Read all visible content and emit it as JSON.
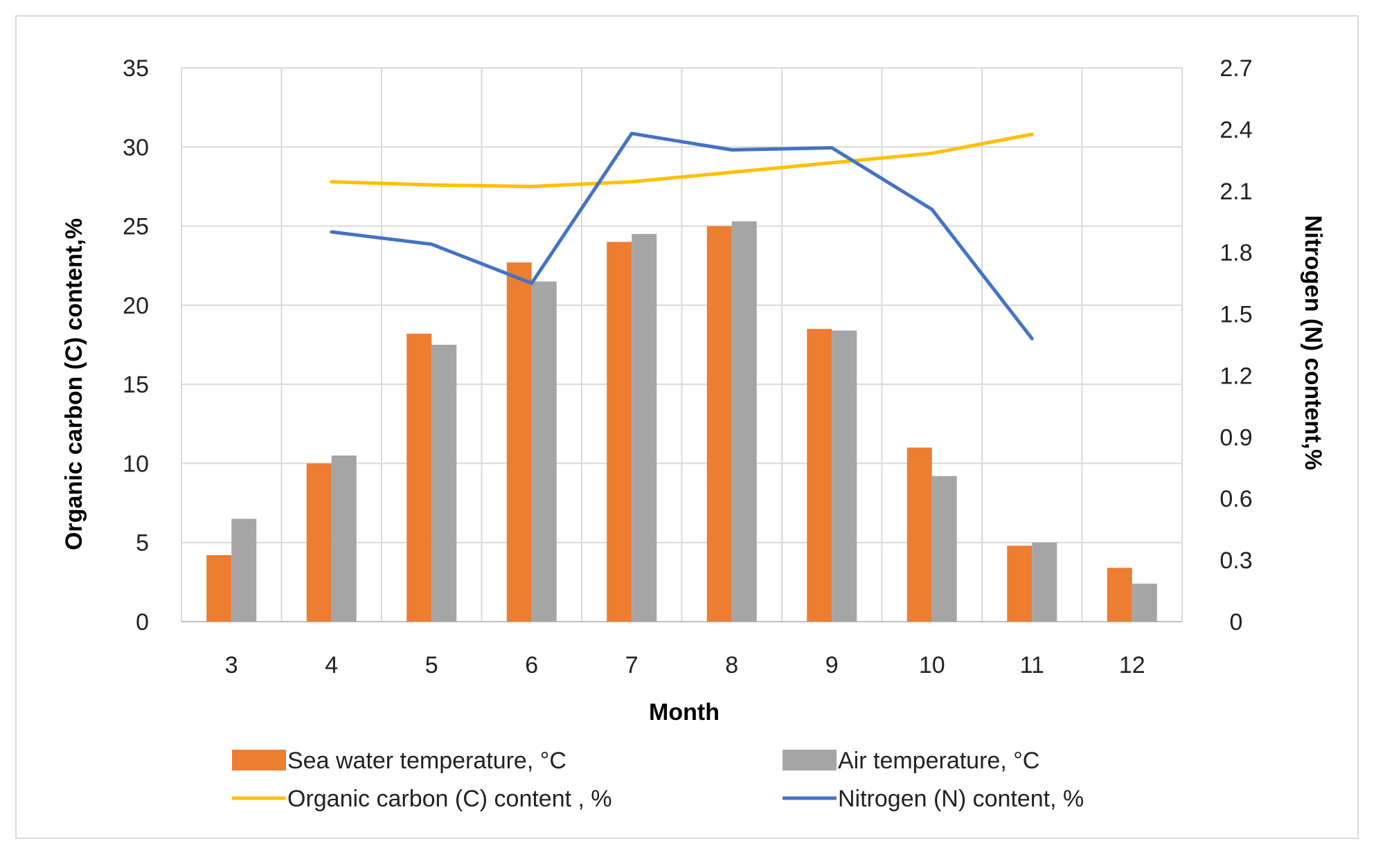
{
  "chart_data": {
    "type": "bar",
    "categories": [
      "3",
      "4",
      "5",
      "6",
      "7",
      "8",
      "9",
      "10",
      "11",
      "12"
    ],
    "xlabel": "Month",
    "ylabel": "Organic carbon (C) content,%",
    "y2label": "Nitrogen (N) content,%",
    "ylim": [
      0,
      35
    ],
    "y2lim": [
      0,
      2.7
    ],
    "yticks": [
      "0",
      "5",
      "10",
      "15",
      "20",
      "25",
      "30",
      "35"
    ],
    "y2ticks": [
      "0",
      "0.3",
      "0.6",
      "0.9",
      "1.2",
      "1.5",
      "1.8",
      "2.1",
      "2.4",
      "2.7"
    ],
    "grid": true,
    "legend_position": "bottom",
    "series": [
      {
        "name": "Sea water temperature, °C",
        "type": "bar",
        "axis": "left",
        "color": "#ED7D31",
        "values": [
          4.2,
          10.0,
          18.2,
          22.7,
          24.0,
          25.0,
          18.5,
          11.0,
          4.8,
          3.4
        ]
      },
      {
        "name": "Air temperature, °C",
        "type": "bar",
        "axis": "left",
        "color": "#A5A5A5",
        "values": [
          6.5,
          10.5,
          17.5,
          21.5,
          24.5,
          25.3,
          18.4,
          9.2,
          5.0,
          2.4
        ]
      },
      {
        "name": "Organic carbon (C) content , %",
        "type": "line",
        "axis": "left",
        "color": "#FFC000",
        "values": [
          null,
          27.8,
          27.6,
          27.5,
          27.8,
          28.4,
          29.0,
          29.6,
          30.8,
          null
        ]
      },
      {
        "name": "Nitrogen (N) content, %",
        "type": "line",
        "axis": "right",
        "color": "#4472C4",
        "values": [
          null,
          1.9,
          1.84,
          1.65,
          2.38,
          2.3,
          2.31,
          2.01,
          1.38,
          null
        ]
      }
    ]
  }
}
